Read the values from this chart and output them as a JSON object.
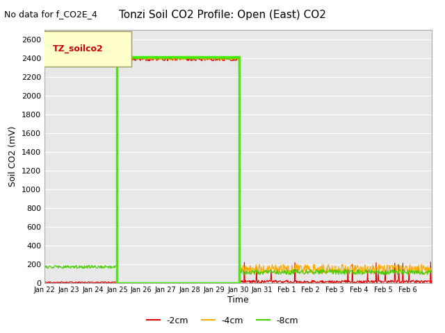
{
  "title": "Tonzi Soil CO2 Profile: Open (East) CO2",
  "no_data_text": "No data for f_CO2E_4",
  "ylabel": "Soil CO2 (mV)",
  "xlabel": "Time",
  "ylim": [
    0,
    2700
  ],
  "yticks": [
    0,
    200,
    400,
    600,
    800,
    1000,
    1200,
    1400,
    1600,
    1800,
    2000,
    2200,
    2400,
    2600
  ],
  "legend_label": "TZ_soilco2",
  "legend_box_color": "#ffffcc",
  "legend_box_edge": "#999955",
  "legend_text_color": "#cc0000",
  "background_color": "#e8e8e8",
  "series": [
    {
      "label": "-2cm",
      "color": "#dd0000"
    },
    {
      "label": "-4cm",
      "color": "#ffaa00"
    },
    {
      "label": "-8cm",
      "color": "#44cc00"
    }
  ],
  "highlight_rect": {
    "x_start_day": 3,
    "x_end_day": 8.05,
    "y_top": 2410,
    "color": "#44ee00",
    "linewidth": 2.5
  },
  "n_days": 16,
  "xtick_positions": [
    0,
    1,
    2,
    3,
    4,
    5,
    6,
    7,
    8,
    9,
    10,
    11,
    12,
    13,
    14,
    15
  ],
  "xtick_labels": [
    "Jan 22",
    "Jan 23",
    "Jan 24",
    "Jan 25",
    "Jan 26",
    "Jan 27",
    "Jan 28",
    "Jan 29",
    "Jan 30",
    "Jan 31",
    "Feb 1",
    "Feb 2",
    "Feb 3",
    "Feb 4",
    "Feb 5",
    "Feb 6"
  ]
}
